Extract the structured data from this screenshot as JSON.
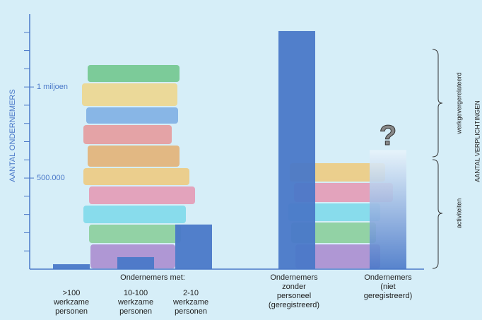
{
  "chart_data": {
    "type": "bar",
    "y_label": "AANTAL ONDERNEMERS",
    "group_label": "Ondernemers met:",
    "categories": [
      [
        ">100",
        "werkzame",
        "personen"
      ],
      [
        "10-100",
        "werkzame",
        "personen"
      ],
      [
        "2-10",
        "werkzame",
        "personen"
      ],
      [
        "Ondernemers",
        "zonder",
        "personeel",
        "(geregistreerd)"
      ],
      [
        "Ondernemers",
        "(niet",
        "geregistreerd)"
      ]
    ],
    "values": [
      27000,
      66000,
      245000,
      1307000,
      654000
    ],
    "color": "#4a78c8",
    "faded_color": "#e8f4fb",
    "ylim": [
      0,
      1400000
    ],
    "yticks": [
      {
        "value": 500000,
        "label": "500.000"
      },
      {
        "value": 1000000,
        "label": "1 miljoen"
      }
    ],
    "minor_yticks": [
      100000,
      200000,
      300000,
      400000,
      500000,
      600000,
      700000,
      800000,
      900000,
      1000000,
      1100000,
      1200000,
      1300000
    ],
    "unknown_marker": "?",
    "right_axis_label": "AANTAL VERPLICHTINGEN",
    "brackets": [
      "werkgevergerelateerd",
      "activiteiten"
    ]
  }
}
